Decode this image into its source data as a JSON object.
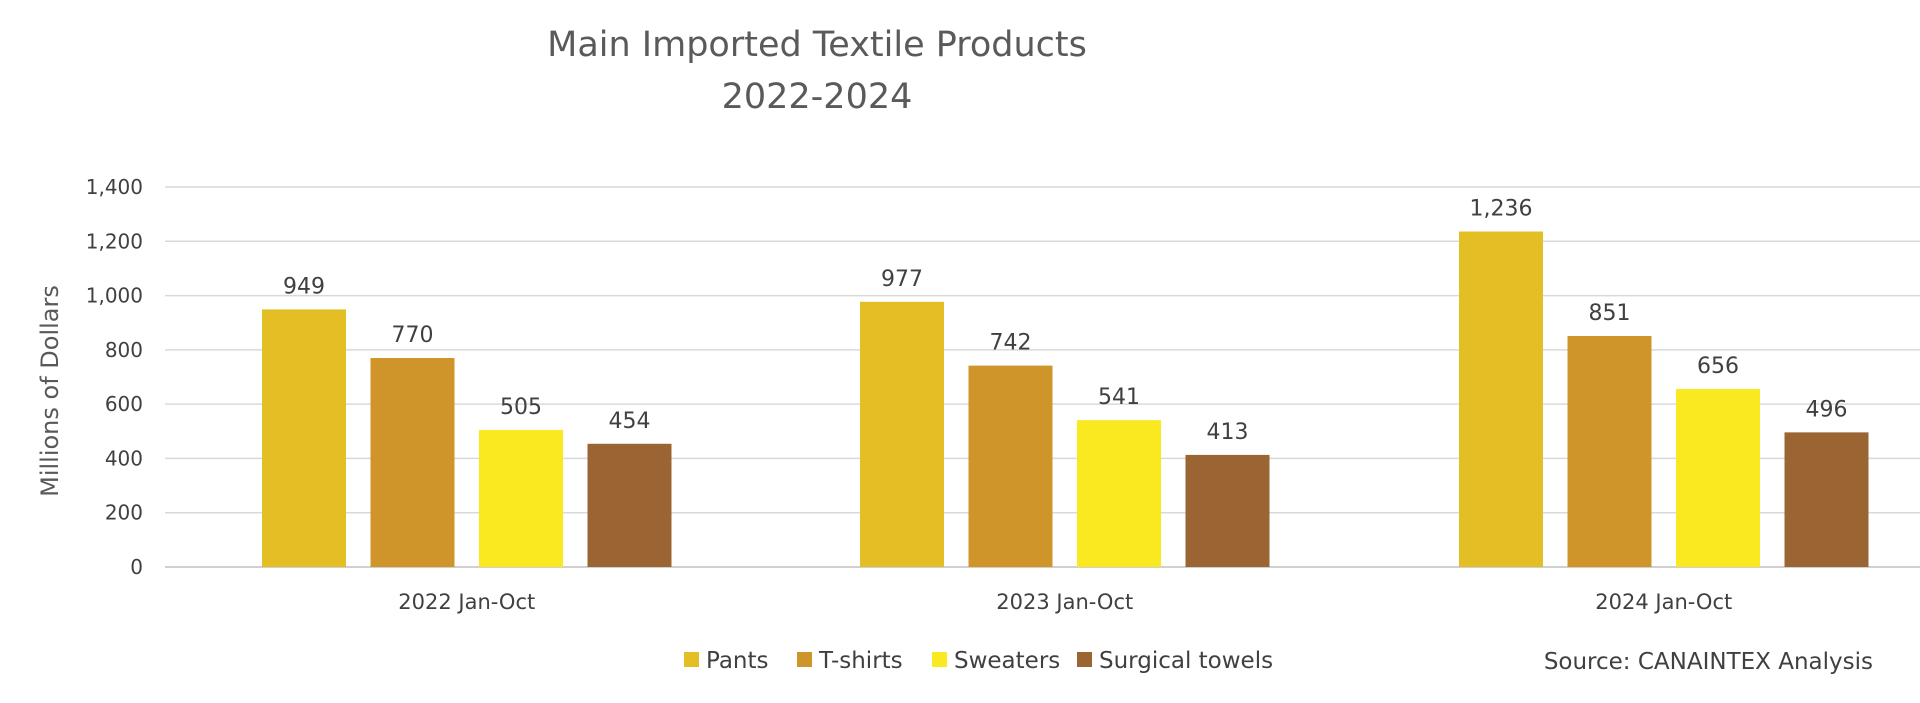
{
  "chart_data": {
    "type": "bar",
    "title": "Main Imported Textile Products",
    "subtitle": "2022-2024",
    "xlabel": "",
    "ylabel": "Millions of Dollars",
    "ylim": [
      0,
      1400
    ],
    "yticks": [
      0,
      200,
      400,
      600,
      800,
      1000,
      1200,
      1400
    ],
    "ytick_labels": [
      "0",
      "200",
      "400",
      "600",
      "800",
      "1,000",
      "1,200",
      "1,400"
    ],
    "grid": true,
    "legend_position": "bottom",
    "categories": [
      "2022 Jan-Oct",
      "2023 Jan-Oct",
      "2024 Jan-Oct"
    ],
    "series": [
      {
        "name": "Pants",
        "color": "#E3BE25",
        "values": [
          949,
          977,
          1236
        ],
        "labels": [
          "949",
          "977",
          "1,236"
        ]
      },
      {
        "name": "T-shirts",
        "color": "#D0952A",
        "values": [
          770,
          742,
          851
        ],
        "labels": [
          "770",
          "742",
          "851"
        ]
      },
      {
        "name": "Sweaters",
        "color": "#FAE821",
        "values": [
          505,
          541,
          656
        ],
        "labels": [
          "505",
          "541",
          "656"
        ]
      },
      {
        "name": "Surgical towels",
        "color": "#9A6433",
        "values": [
          454,
          413,
          496
        ],
        "labels": [
          "454",
          "413",
          "496"
        ]
      }
    ],
    "source": "Source: CANAINTEX Analysis"
  }
}
